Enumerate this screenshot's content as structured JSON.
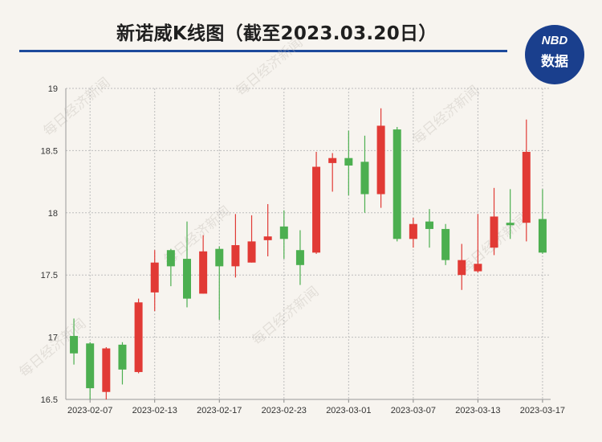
{
  "header": {
    "title": "新诺威K线图（截至2023.03.20日）",
    "logo_top": "NBD",
    "logo_bottom": "数据"
  },
  "watermark": "每日经济新闻",
  "colors": {
    "up": "#e13a35",
    "down": "#4caf50",
    "rule": "#1d4a9c",
    "logo_bg": "#1a3f8d"
  },
  "chart_data": {
    "type": "candlestick",
    "title": "",
    "xlabel": "",
    "ylabel": "",
    "ylim": [
      16.5,
      19
    ],
    "yticks": [
      16.5,
      17,
      17.5,
      18,
      18.5,
      19
    ],
    "xtick_labels": [
      "2023-02-07",
      "2023-02-13",
      "2023-02-17",
      "2023-02-23",
      "2023-03-01",
      "2023-03-07",
      "2023-03-13",
      "2023-03-17"
    ],
    "grid": true,
    "candles": [
      {
        "date": "2023-02-06",
        "open": 17.01,
        "close": 16.87,
        "high": 17.15,
        "low": 16.78
      },
      {
        "date": "2023-02-07",
        "open": 16.95,
        "close": 16.59,
        "high": 16.96,
        "low": 16.5
      },
      {
        "date": "2023-02-08",
        "open": 16.56,
        "close": 16.91,
        "high": 16.92,
        "low": 16.5
      },
      {
        "date": "2023-02-09",
        "open": 16.94,
        "close": 16.74,
        "high": 16.96,
        "low": 16.62
      },
      {
        "date": "2023-02-10",
        "open": 16.72,
        "close": 17.28,
        "high": 17.31,
        "low": 16.71
      },
      {
        "date": "2023-02-13",
        "open": 17.36,
        "close": 17.6,
        "high": 17.7,
        "low": 17.21
      },
      {
        "date": "2023-02-14",
        "open": 17.7,
        "close": 17.57,
        "high": 17.71,
        "low": 17.41
      },
      {
        "date": "2023-02-15",
        "open": 17.63,
        "close": 17.31,
        "high": 17.93,
        "low": 17.24
      },
      {
        "date": "2023-02-16",
        "open": 17.35,
        "close": 17.69,
        "high": 17.82,
        "low": 17.35
      },
      {
        "date": "2023-02-17",
        "open": 17.71,
        "close": 17.57,
        "high": 17.73,
        "low": 17.14
      },
      {
        "date": "2023-02-20",
        "open": 17.57,
        "close": 17.74,
        "high": 17.99,
        "low": 17.48
      },
      {
        "date": "2023-02-21",
        "open": 17.6,
        "close": 17.77,
        "high": 17.98,
        "low": 17.6
      },
      {
        "date": "2023-02-22",
        "open": 17.78,
        "close": 17.81,
        "high": 18.07,
        "low": 17.65
      },
      {
        "date": "2023-02-23",
        "open": 17.89,
        "close": 17.79,
        "high": 18.02,
        "low": 17.63
      },
      {
        "date": "2023-02-24",
        "open": 17.7,
        "close": 17.58,
        "high": 17.86,
        "low": 17.42
      },
      {
        "date": "2023-02-27",
        "open": 17.68,
        "close": 18.37,
        "high": 18.49,
        "low": 17.67
      },
      {
        "date": "2023-02-28",
        "open": 18.4,
        "close": 18.44,
        "high": 18.48,
        "low": 18.17
      },
      {
        "date": "2023-03-01",
        "open": 18.44,
        "close": 18.38,
        "high": 18.66,
        "low": 18.14
      },
      {
        "date": "2023-03-02",
        "open": 18.41,
        "close": 18.15,
        "high": 18.62,
        "low": 18.0
      },
      {
        "date": "2023-03-03",
        "open": 18.15,
        "close": 18.7,
        "high": 18.84,
        "low": 18.04
      },
      {
        "date": "2023-03-06",
        "open": 18.67,
        "close": 17.79,
        "high": 18.69,
        "low": 17.77
      },
      {
        "date": "2023-03-07",
        "open": 17.79,
        "close": 17.91,
        "high": 17.96,
        "low": 17.72
      },
      {
        "date": "2023-03-08",
        "open": 17.93,
        "close": 17.87,
        "high": 18.03,
        "low": 17.72
      },
      {
        "date": "2023-03-09",
        "open": 17.87,
        "close": 17.62,
        "high": 17.91,
        "low": 17.58
      },
      {
        "date": "2023-03-10",
        "open": 17.5,
        "close": 17.62,
        "high": 17.75,
        "low": 17.38
      },
      {
        "date": "2023-03-13",
        "open": 17.53,
        "close": 17.59,
        "high": 17.99,
        "low": 17.52
      },
      {
        "date": "2023-03-14",
        "open": 17.72,
        "close": 17.97,
        "high": 18.2,
        "low": 17.66
      },
      {
        "date": "2023-03-15",
        "open": 17.92,
        "close": 17.9,
        "high": 18.19,
        "low": 17.79
      },
      {
        "date": "2023-03-16",
        "open": 17.92,
        "close": 18.49,
        "high": 18.75,
        "low": 17.77
      },
      {
        "date": "2023-03-17",
        "open": 17.95,
        "close": 17.68,
        "high": 18.19,
        "low": 17.67
      }
    ]
  }
}
